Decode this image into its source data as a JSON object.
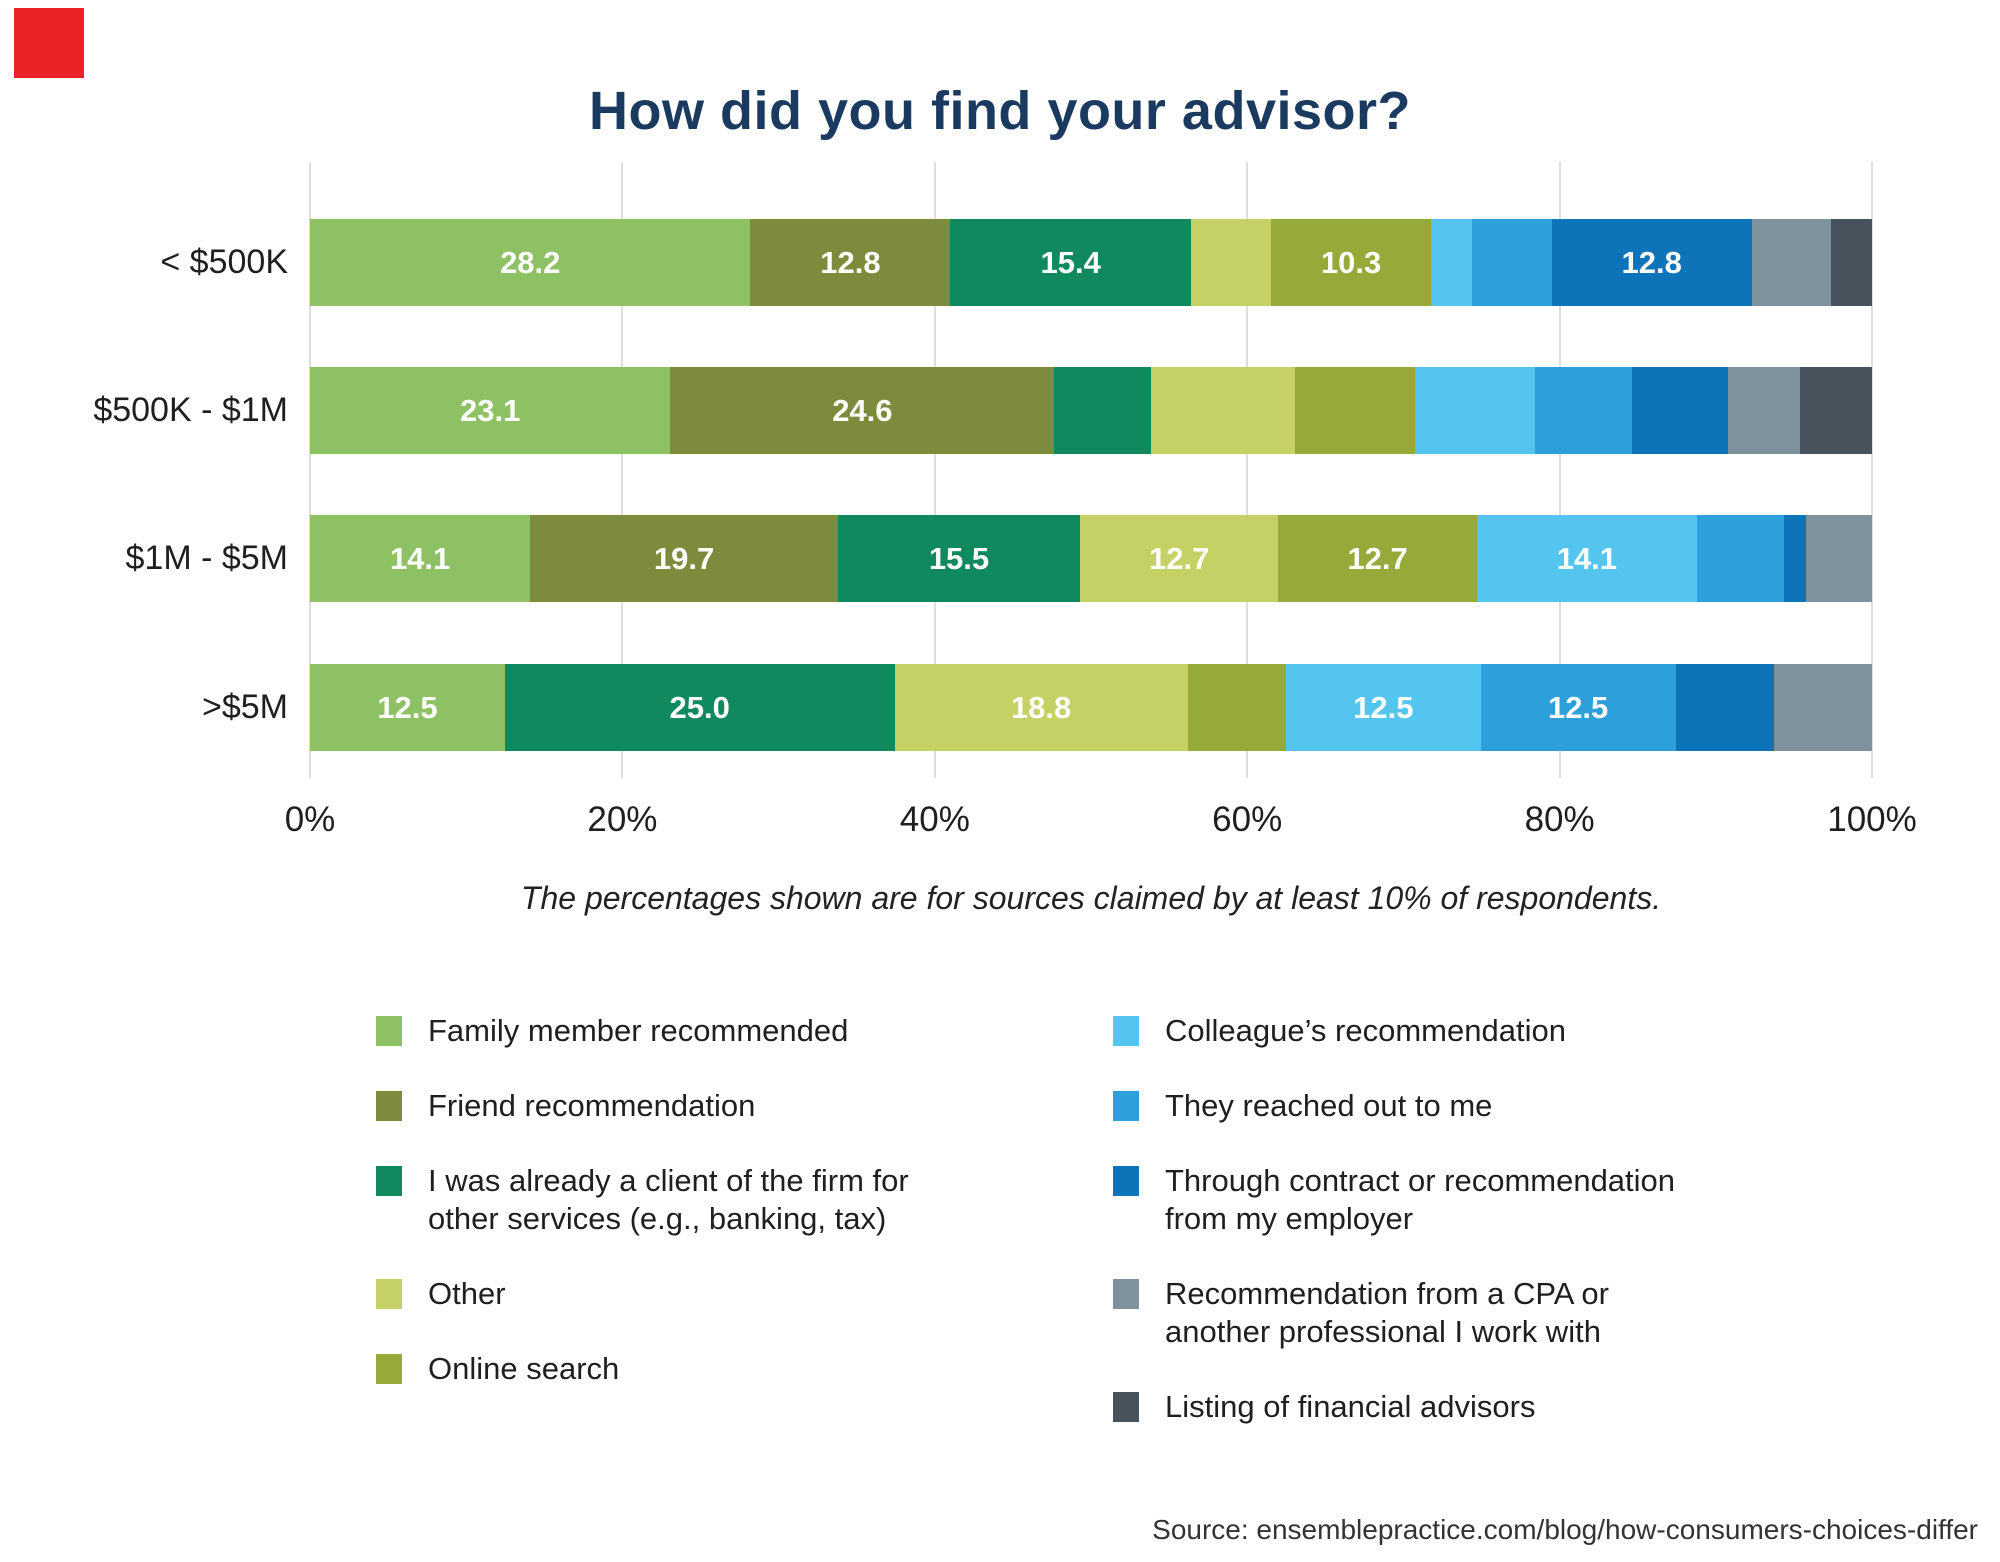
{
  "page": {
    "background": "#ffffff",
    "red_marker_color": "#ea2328"
  },
  "chart_data": {
    "type": "bar",
    "orientation": "horizontal-stacked",
    "title": "How did you find your advisor?",
    "title_color": "#1b3a5f",
    "caption": "The percentages shown are for sources claimed by at least 10% of respondents.",
    "source": "Source: ensemblepractice.com/blog/how-consumers-choices-differ",
    "categories": [
      "< $500K",
      "$500K - $1M",
      "$1M - $5M",
      ">$5M"
    ],
    "x_ticks": [
      "0%",
      "20%",
      "40%",
      "60%",
      "80%",
      "100%"
    ],
    "xlim": [
      0,
      100
    ],
    "grid": true,
    "label_threshold": 10,
    "series": [
      {
        "name": "Family member recommended",
        "color": "#8dc163",
        "values": [
          28.2,
          23.1,
          14.1,
          12.5
        ]
      },
      {
        "name": "Friend recommendation",
        "color": "#7d8c3c",
        "values": [
          12.8,
          24.6,
          19.7,
          0
        ]
      },
      {
        "name": "I was already a client of the firm for\nother services (e.g., banking, tax)",
        "color": "#10895f",
        "values": [
          15.4,
          6.2,
          15.5,
          25.0
        ]
      },
      {
        "name": "Other",
        "color": "#c5d164",
        "values": [
          5.1,
          9.2,
          12.7,
          18.8
        ]
      },
      {
        "name": "Online search",
        "color": "#95aa39",
        "values": [
          10.3,
          7.7,
          12.7,
          6.3
        ]
      },
      {
        "name": "Colleague’s recommendation",
        "color": "#54c5ee",
        "values": [
          2.6,
          7.7,
          14.1,
          12.5
        ]
      },
      {
        "name": "They reached out to me",
        "color": "#2d9fda",
        "values": [
          5.1,
          6.2,
          5.6,
          12.5
        ]
      },
      {
        "name": "Through contract or recommendation\nfrom my employer",
        "color": "#0e74ba",
        "values": [
          12.8,
          6.2,
          1.4,
          6.3
        ]
      },
      {
        "name": "Recommendation from a CPA or\nanother professional I work with",
        "color": "#7e929d",
        "values": [
          5.1,
          4.6,
          4.2,
          6.3
        ]
      },
      {
        "name": "Listing of financial advisors",
        "color": "#46535d",
        "values": [
          2.6,
          4.6,
          0,
          0
        ]
      }
    ],
    "legend": {
      "left_indices": [
        0,
        1,
        2,
        3,
        4
      ],
      "right_indices": [
        5,
        6,
        7,
        8,
        9
      ]
    }
  }
}
